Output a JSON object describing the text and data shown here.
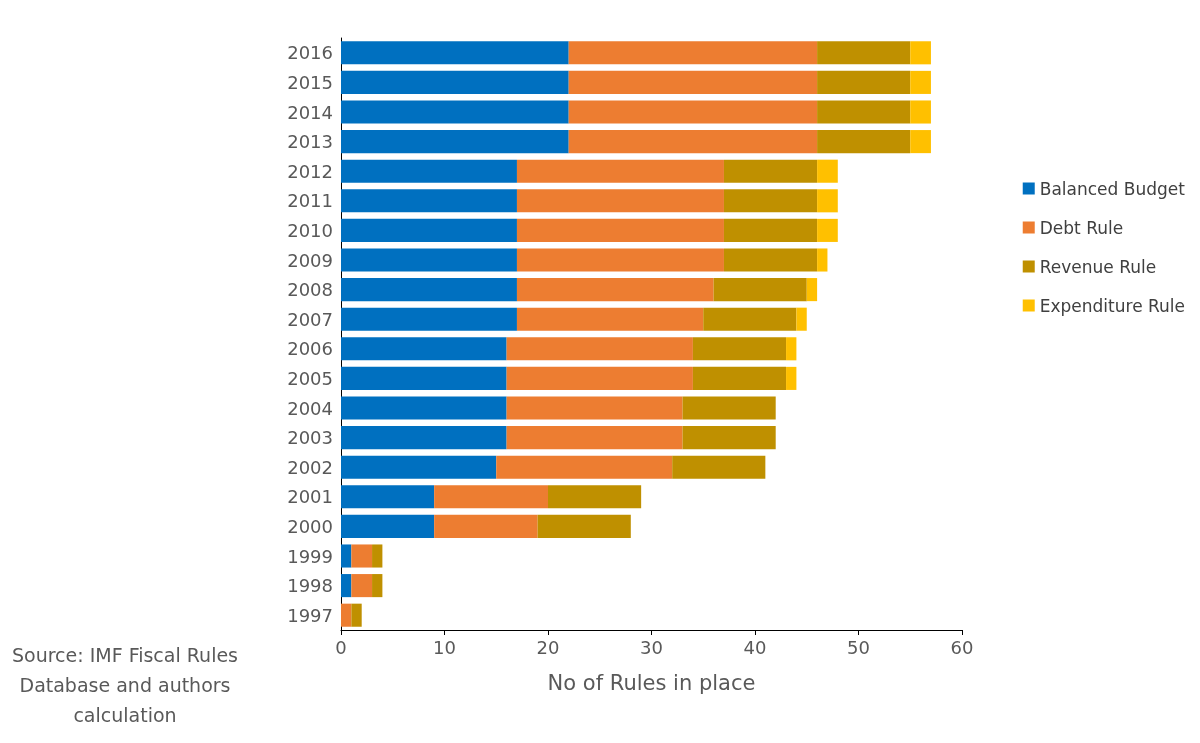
{
  "chart_data": {
    "type": "bar",
    "orientation": "horizontal",
    "stacked": true,
    "xlabel": "No of Rules in place",
    "categories": [
      "2016",
      "2015",
      "2014",
      "2013",
      "2012",
      "2011",
      "2010",
      "2009",
      "2008",
      "2007",
      "2006",
      "2005",
      "2004",
      "2003",
      "2002",
      "2001",
      "2000",
      "1999",
      "1998",
      "1997"
    ],
    "series": [
      {
        "name": "Balanced Budget",
        "color": "#0070c0",
        "values": [
          22,
          22,
          22,
          22,
          17,
          17,
          17,
          17,
          17,
          17,
          16,
          16,
          16,
          16,
          15,
          9,
          9,
          1,
          1,
          0
        ]
      },
      {
        "name": "Debt Rule",
        "color": "#ed7d31",
        "values": [
          24,
          24,
          24,
          24,
          20,
          20,
          20,
          20,
          19,
          18,
          18,
          18,
          17,
          17,
          17,
          11,
          10,
          2,
          2,
          1
        ]
      },
      {
        "name": "Revenue Rule",
        "color": "#bf9000",
        "values": [
          9,
          9,
          9,
          9,
          9,
          9,
          9,
          9,
          9,
          9,
          9,
          9,
          9,
          9,
          9,
          9,
          9,
          1,
          1,
          1
        ]
      },
      {
        "name": "Expenditure Rule",
        "color": "#ffc000",
        "values": [
          2,
          2,
          2,
          2,
          2,
          2,
          2,
          1,
          1,
          1,
          1,
          1,
          0,
          0,
          0,
          0,
          0,
          0,
          0,
          0
        ]
      }
    ],
    "xlim": [
      0,
      60
    ],
    "xticks": [
      0,
      10,
      20,
      30,
      40,
      50,
      60
    ],
    "grid": false,
    "legend": "right",
    "annotations": [
      "Source: IMF Fiscal Rules Database and authors calculation"
    ]
  }
}
